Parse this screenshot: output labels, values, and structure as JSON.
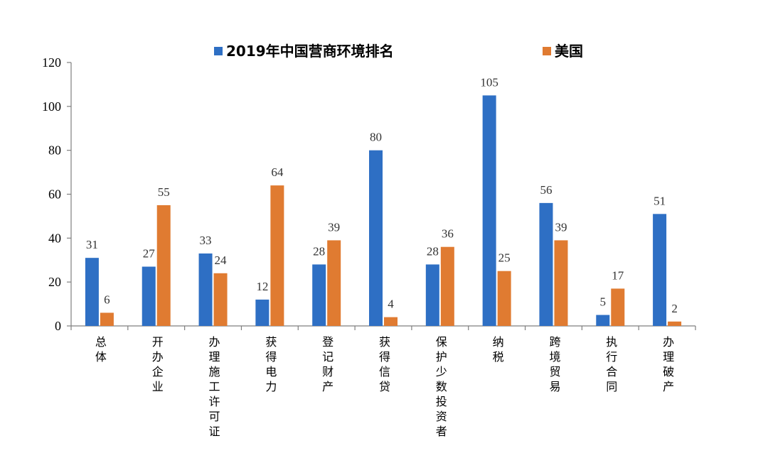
{
  "chart_data": {
    "type": "bar",
    "categories": [
      "总体",
      "开办企业",
      "办理施工许可证",
      "获得电力",
      "登记财产",
      "获得信贷",
      "保护少数投资者",
      "纳税",
      "跨境贸易",
      "执行合同",
      "办理破产"
    ],
    "series": [
      {
        "name": "2019年中国营商环境排名",
        "color": "#2e6fc4",
        "values": [
          31,
          27,
          33,
          12,
          28,
          80,
          28,
          105,
          56,
          5,
          51
        ]
      },
      {
        "name": "美国",
        "color": "#e07b31",
        "values": [
          6,
          55,
          24,
          64,
          39,
          4,
          36,
          25,
          39,
          17,
          2
        ]
      }
    ],
    "title": "",
    "xlabel": "",
    "ylabel": "",
    "ylim": [
      0,
      120
    ],
    "yticks": [
      0,
      20,
      40,
      60,
      80,
      100,
      120
    ],
    "legend_position": "top",
    "grid": false,
    "data_labels": true
  }
}
